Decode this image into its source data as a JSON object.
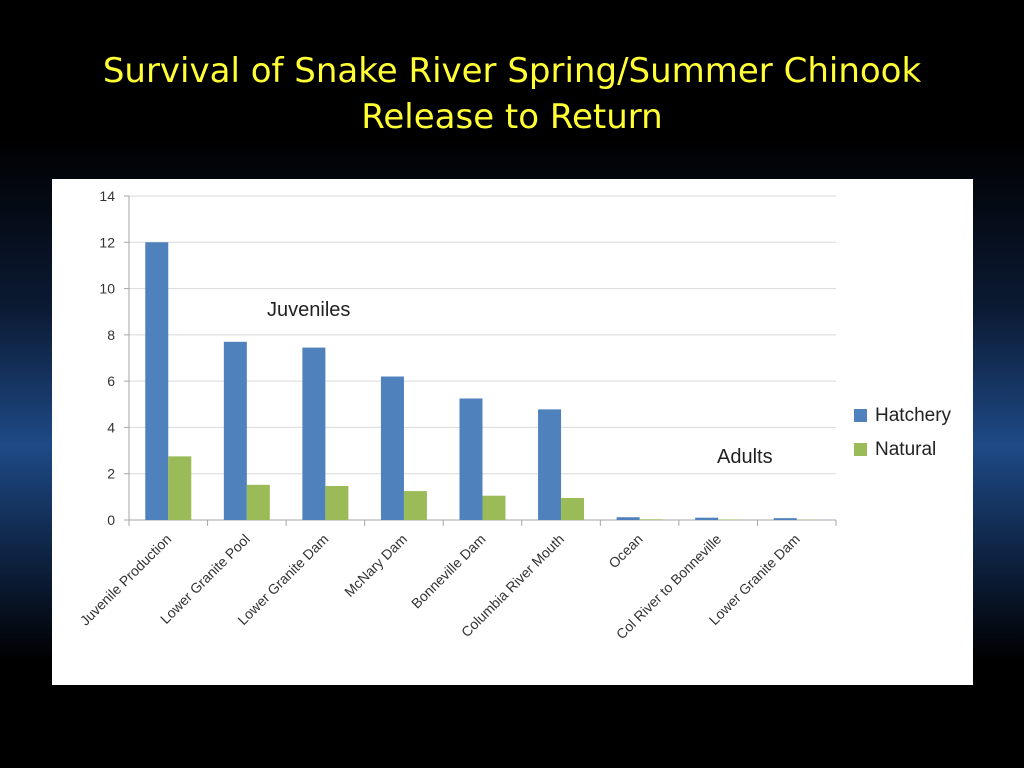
{
  "slide": {
    "title_line1": "Survival of Snake River Spring/Summer Chinook",
    "title_line2": "Release to Return"
  },
  "colors": {
    "title": "#ffff33",
    "hatchery": "#4f81bd",
    "natural": "#9bbb59",
    "gridline": "#d9d9d9"
  },
  "chart_data": {
    "type": "bar",
    "title": "",
    "xlabel": "",
    "ylabel": "",
    "ylim": [
      0,
      14
    ],
    "yticks": [
      0,
      2,
      4,
      6,
      8,
      10,
      12,
      14
    ],
    "grid": true,
    "legend_position": "right",
    "categories": [
      "Juvenile Production",
      "Lower Granite Pool",
      "Lower Granite Dam",
      "McNary Dam",
      "Bonneville Dam",
      "Columbia River Mouth",
      "Ocean",
      "Col River to Bonneville",
      "Lower Granite Dam"
    ],
    "series": [
      {
        "name": "Hatchery",
        "values": [
          12.0,
          7.7,
          7.45,
          6.2,
          5.25,
          4.78,
          0.12,
          0.1,
          0.08
        ]
      },
      {
        "name": "Natural",
        "values": [
          2.75,
          1.52,
          1.47,
          1.25,
          1.05,
          0.95,
          0.03,
          0.02,
          0.01
        ]
      }
    ],
    "annotations": [
      {
        "text": "Juveniles"
      },
      {
        "text": "Adults"
      }
    ]
  }
}
